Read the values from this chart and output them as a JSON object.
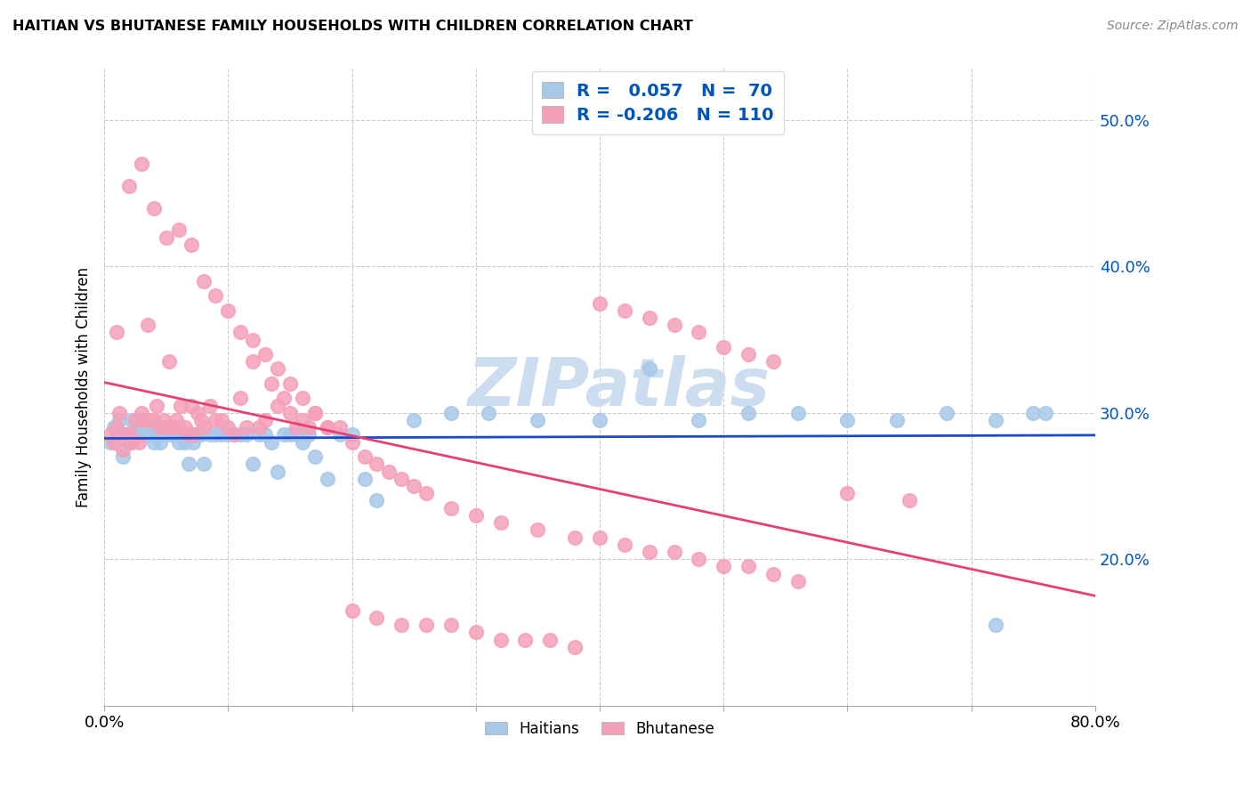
{
  "title": "HAITIAN VS BHUTANESE FAMILY HOUSEHOLDS WITH CHILDREN CORRELATION CHART",
  "source": "Source: ZipAtlas.com",
  "ylabel": "Family Households with Children",
  "x_min": 0.0,
  "x_max": 0.8,
  "y_min": 0.1,
  "y_max": 0.535,
  "yticks": [
    0.2,
    0.3,
    0.4,
    0.5
  ],
  "ytick_labels": [
    "20.0%",
    "30.0%",
    "40.0%",
    "50.0%"
  ],
  "xticks": [
    0.0,
    0.1,
    0.2,
    0.3,
    0.4,
    0.5,
    0.6,
    0.7,
    0.8
  ],
  "xtick_labels": [
    "0.0%",
    "",
    "",
    "",
    "",
    "",
    "",
    "",
    "80.0%"
  ],
  "haitian_R": 0.057,
  "haitian_N": 70,
  "bhutanese_R": -0.206,
  "bhutanese_N": 110,
  "haitian_color": "#a8c8e8",
  "bhutanese_color": "#f4a0b8",
  "haitian_line_color": "#1a4acc",
  "bhutanese_line_color": "#e84070",
  "legend_color": "#0055bb",
  "watermark": "ZIPatlas",
  "watermark_color": "#ccddf0",
  "background_color": "#ffffff",
  "haitian_x": [
    0.005,
    0.008,
    0.01,
    0.012,
    0.015,
    0.018,
    0.02,
    0.022,
    0.025,
    0.028,
    0.03,
    0.032,
    0.035,
    0.038,
    0.04,
    0.042,
    0.045,
    0.048,
    0.05,
    0.052,
    0.055,
    0.058,
    0.06,
    0.062,
    0.065,
    0.068,
    0.07,
    0.072,
    0.075,
    0.078,
    0.08,
    0.085,
    0.09,
    0.095,
    0.1,
    0.105,
    0.11,
    0.115,
    0.12,
    0.125,
    0.13,
    0.135,
    0.14,
    0.145,
    0.15,
    0.155,
    0.16,
    0.165,
    0.17,
    0.18,
    0.19,
    0.2,
    0.21,
    0.22,
    0.25,
    0.28,
    0.31,
    0.35,
    0.4,
    0.44,
    0.48,
    0.52,
    0.56,
    0.6,
    0.64,
    0.68,
    0.72,
    0.75,
    0.76,
    0.72
  ],
  "haitian_y": [
    0.28,
    0.29,
    0.285,
    0.295,
    0.27,
    0.285,
    0.28,
    0.295,
    0.285,
    0.285,
    0.285,
    0.29,
    0.285,
    0.285,
    0.28,
    0.29,
    0.28,
    0.285,
    0.29,
    0.285,
    0.285,
    0.285,
    0.28,
    0.285,
    0.28,
    0.265,
    0.285,
    0.28,
    0.285,
    0.285,
    0.265,
    0.285,
    0.285,
    0.285,
    0.285,
    0.285,
    0.285,
    0.285,
    0.265,
    0.285,
    0.285,
    0.28,
    0.26,
    0.285,
    0.285,
    0.285,
    0.28,
    0.285,
    0.27,
    0.255,
    0.285,
    0.285,
    0.255,
    0.24,
    0.295,
    0.3,
    0.3,
    0.295,
    0.295,
    0.33,
    0.295,
    0.3,
    0.3,
    0.295,
    0.295,
    0.3,
    0.295,
    0.3,
    0.3,
    0.155
  ],
  "bhutanese_x": [
    0.005,
    0.008,
    0.01,
    0.012,
    0.015,
    0.018,
    0.02,
    0.022,
    0.025,
    0.028,
    0.03,
    0.032,
    0.035,
    0.038,
    0.04,
    0.042,
    0.045,
    0.048,
    0.05,
    0.052,
    0.055,
    0.058,
    0.06,
    0.062,
    0.065,
    0.068,
    0.07,
    0.072,
    0.075,
    0.078,
    0.08,
    0.085,
    0.09,
    0.095,
    0.1,
    0.105,
    0.11,
    0.115,
    0.12,
    0.125,
    0.13,
    0.135,
    0.14,
    0.145,
    0.15,
    0.155,
    0.16,
    0.165,
    0.17,
    0.18,
    0.01,
    0.02,
    0.03,
    0.04,
    0.05,
    0.06,
    0.07,
    0.08,
    0.09,
    0.1,
    0.11,
    0.12,
    0.13,
    0.14,
    0.15,
    0.16,
    0.17,
    0.18,
    0.19,
    0.2,
    0.21,
    0.22,
    0.23,
    0.24,
    0.25,
    0.26,
    0.28,
    0.3,
    0.32,
    0.35,
    0.38,
    0.4,
    0.42,
    0.44,
    0.46,
    0.48,
    0.5,
    0.52,
    0.54,
    0.56,
    0.2,
    0.22,
    0.24,
    0.26,
    0.28,
    0.3,
    0.32,
    0.34,
    0.36,
    0.38,
    0.4,
    0.42,
    0.44,
    0.46,
    0.48,
    0.5,
    0.52,
    0.54,
    0.6,
    0.65
  ],
  "bhutanese_y": [
    0.285,
    0.28,
    0.29,
    0.3,
    0.275,
    0.285,
    0.285,
    0.28,
    0.295,
    0.28,
    0.3,
    0.295,
    0.36,
    0.295,
    0.295,
    0.305,
    0.29,
    0.295,
    0.29,
    0.335,
    0.29,
    0.295,
    0.29,
    0.305,
    0.29,
    0.285,
    0.305,
    0.285,
    0.3,
    0.295,
    0.29,
    0.305,
    0.295,
    0.295,
    0.29,
    0.285,
    0.31,
    0.29,
    0.335,
    0.29,
    0.295,
    0.32,
    0.305,
    0.31,
    0.3,
    0.29,
    0.295,
    0.29,
    0.3,
    0.29,
    0.355,
    0.455,
    0.47,
    0.44,
    0.42,
    0.425,
    0.415,
    0.39,
    0.38,
    0.37,
    0.355,
    0.35,
    0.34,
    0.33,
    0.32,
    0.31,
    0.3,
    0.29,
    0.29,
    0.28,
    0.27,
    0.265,
    0.26,
    0.255,
    0.25,
    0.245,
    0.235,
    0.23,
    0.225,
    0.22,
    0.215,
    0.215,
    0.21,
    0.205,
    0.205,
    0.2,
    0.195,
    0.195,
    0.19,
    0.185,
    0.165,
    0.16,
    0.155,
    0.155,
    0.155,
    0.15,
    0.145,
    0.145,
    0.145,
    0.14,
    0.375,
    0.37,
    0.365,
    0.36,
    0.355,
    0.345,
    0.34,
    0.335,
    0.245,
    0.24
  ]
}
